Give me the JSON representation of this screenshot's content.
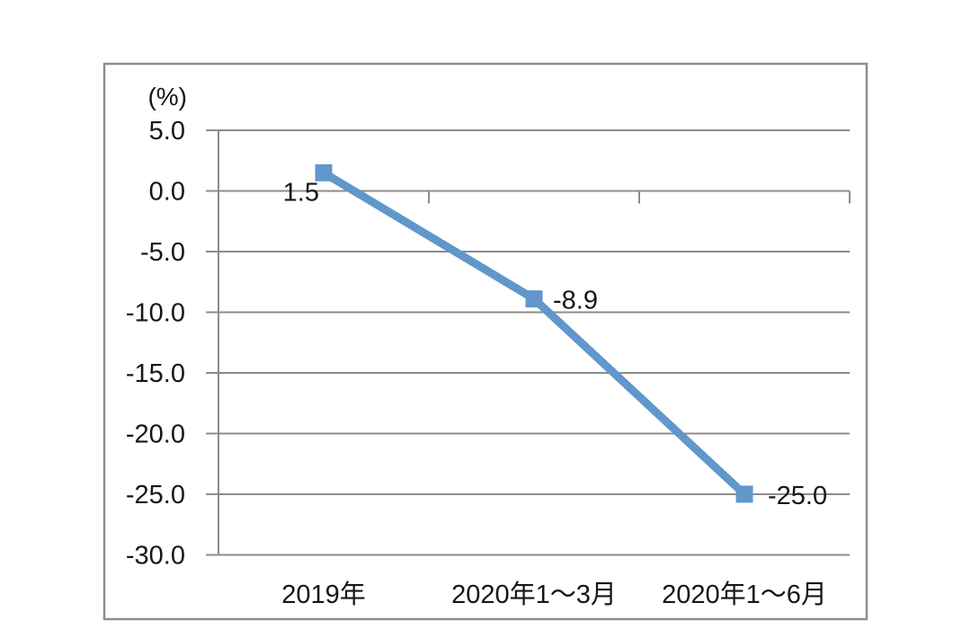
{
  "chart_data": {
    "type": "line",
    "title": "",
    "unit_label": "(%)",
    "categories": [
      "2019年",
      "2020年1～3月",
      "2020年1～6月"
    ],
    "series": [
      {
        "name": "",
        "values": [
          1.5,
          -8.9,
          -25.0
        ]
      }
    ],
    "data_labels": [
      "1.5",
      "-8.9",
      "-25.0"
    ],
    "ylim": [
      -30,
      5
    ],
    "ytick_step": 5,
    "ytick_labels": [
      "5.0",
      "0.0",
      "-5.0",
      "-10.0",
      "-15.0",
      "-20.0",
      "-25.0",
      "-30.0"
    ],
    "grid": true,
    "legend": "none",
    "marker": "square",
    "colors": {
      "series": "#6197CB",
      "gridline": "#8c8c8c",
      "axis": "#8c8c8c",
      "frame_border": "#8f8f8f",
      "text": "#161616",
      "background": "#ffffff"
    }
  }
}
